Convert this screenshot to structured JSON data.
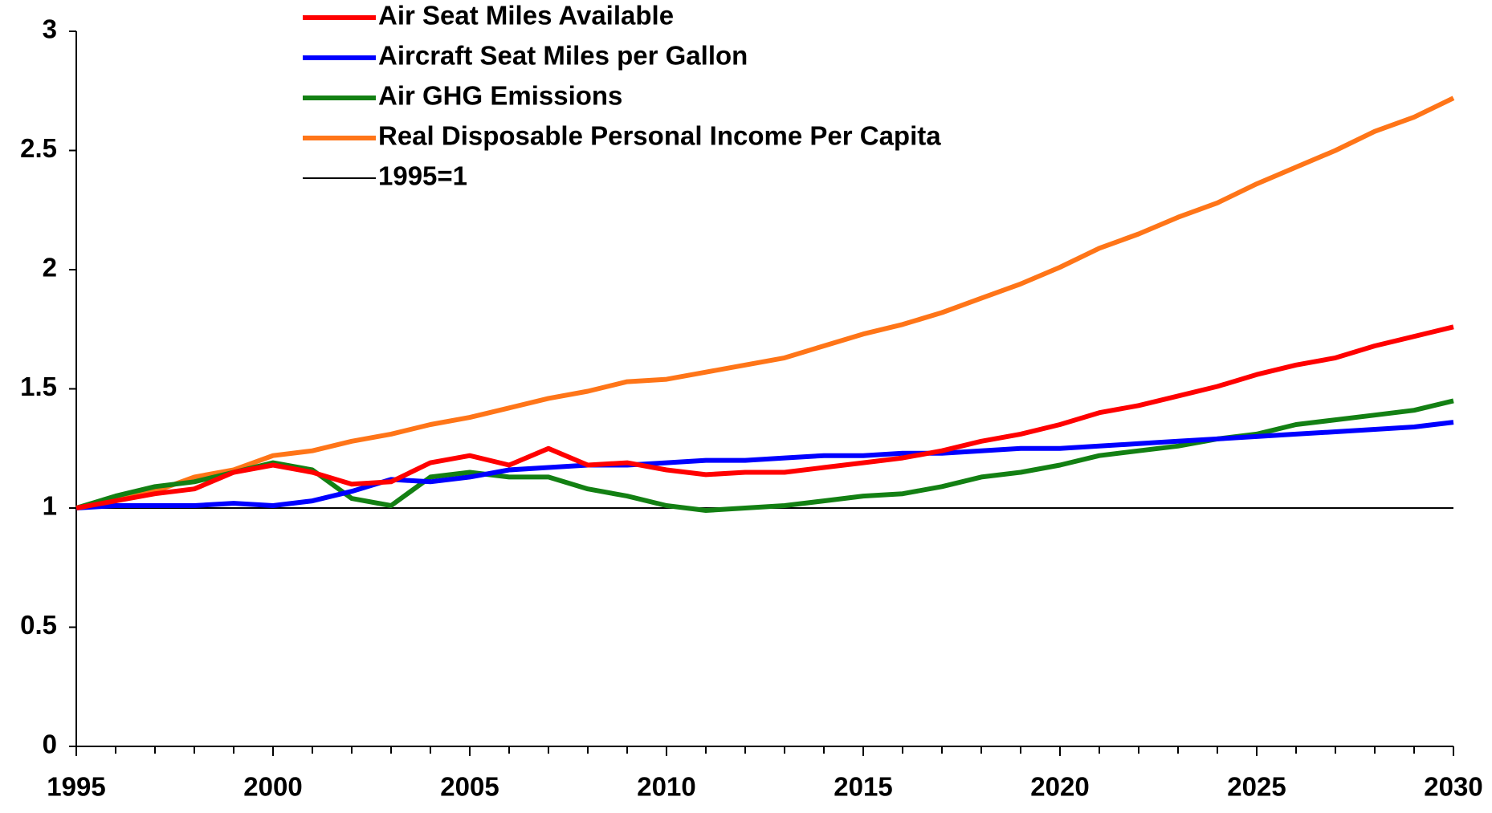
{
  "chart_data": {
    "type": "line",
    "x": [
      1995,
      1996,
      1997,
      1998,
      1999,
      2000,
      2001,
      2002,
      2003,
      2004,
      2005,
      2006,
      2007,
      2008,
      2009,
      2010,
      2011,
      2012,
      2013,
      2014,
      2015,
      2016,
      2017,
      2018,
      2019,
      2020,
      2021,
      2022,
      2023,
      2024,
      2025,
      2026,
      2027,
      2028,
      2029,
      2030
    ],
    "xlim": [
      1995,
      2030
    ],
    "xticks": [
      1995,
      2000,
      2005,
      2010,
      2015,
      2020,
      2025,
      2030
    ],
    "ylim": [
      0,
      3
    ],
    "yticks": [
      0,
      0.5,
      1,
      1.5,
      2,
      2.5,
      3
    ],
    "legend": "top",
    "series": [
      {
        "name": "Air Seat Miles Available",
        "color": "#ff0000",
        "line_width": 6,
        "values": [
          1.0,
          1.03,
          1.06,
          1.08,
          1.15,
          1.18,
          1.15,
          1.1,
          1.11,
          1.19,
          1.22,
          1.18,
          1.25,
          1.18,
          1.19,
          1.16,
          1.14,
          1.15,
          1.15,
          1.17,
          1.19,
          1.21,
          1.24,
          1.28,
          1.31,
          1.35,
          1.4,
          1.43,
          1.47,
          1.51,
          1.56,
          1.6,
          1.63,
          1.68,
          1.72,
          1.76
        ]
      },
      {
        "name": "Aircraft Seat Miles per Gallon",
        "color": "#0000ff",
        "line_width": 6,
        "values": [
          1.0,
          1.01,
          1.01,
          1.01,
          1.02,
          1.01,
          1.03,
          1.07,
          1.12,
          1.11,
          1.13,
          1.16,
          1.17,
          1.18,
          1.18,
          1.19,
          1.2,
          1.2,
          1.21,
          1.22,
          1.22,
          1.23,
          1.23,
          1.24,
          1.25,
          1.25,
          1.26,
          1.27,
          1.28,
          1.29,
          1.3,
          1.31,
          1.32,
          1.33,
          1.34,
          1.36
        ]
      },
      {
        "name": "Air GHG Emissions",
        "color": "#138013",
        "line_width": 6,
        "values": [
          1.0,
          1.05,
          1.09,
          1.11,
          1.15,
          1.19,
          1.16,
          1.04,
          1.01,
          1.13,
          1.15,
          1.13,
          1.13,
          1.08,
          1.05,
          1.01,
          0.99,
          1.0,
          1.01,
          1.03,
          1.05,
          1.06,
          1.09,
          1.13,
          1.15,
          1.18,
          1.22,
          1.24,
          1.26,
          1.29,
          1.31,
          1.35,
          1.37,
          1.39,
          1.41,
          1.45
        ]
      },
      {
        "name": "Real Disposable Personal Income Per Capita",
        "color": "#ff7518",
        "line_width": 6,
        "values": [
          1.0,
          1.03,
          1.07,
          1.13,
          1.16,
          1.22,
          1.24,
          1.28,
          1.31,
          1.35,
          1.38,
          1.42,
          1.46,
          1.49,
          1.53,
          1.54,
          1.57,
          1.6,
          1.63,
          1.68,
          1.73,
          1.77,
          1.82,
          1.88,
          1.94,
          2.01,
          2.09,
          2.15,
          2.22,
          2.28,
          2.36,
          2.43,
          2.5,
          2.58,
          2.64,
          2.72
        ]
      },
      {
        "name": "1995=1",
        "color": "#000000",
        "line_width": 2,
        "values": [
          1,
          1,
          1,
          1,
          1,
          1,
          1,
          1,
          1,
          1,
          1,
          1,
          1,
          1,
          1,
          1,
          1,
          1,
          1,
          1,
          1,
          1,
          1,
          1,
          1,
          1,
          1,
          1,
          1,
          1,
          1,
          1,
          1,
          1,
          1,
          1
        ]
      }
    ]
  }
}
